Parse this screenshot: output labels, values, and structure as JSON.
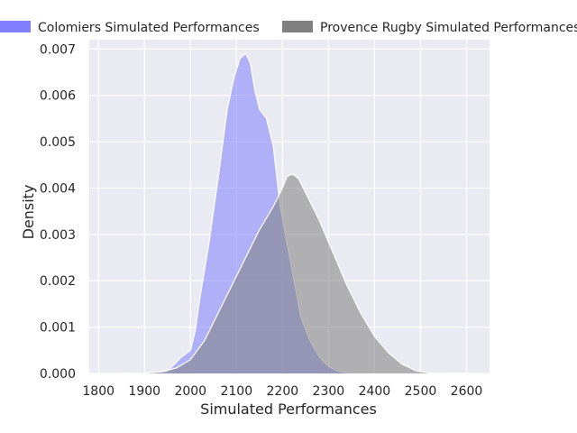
{
  "chart_data": {
    "type": "area",
    "xlabel": "Simulated Performances",
    "ylabel": "Density",
    "xlim": [
      1780,
      2650
    ],
    "ylim": [
      0,
      0.0072
    ],
    "xticks": [
      1800,
      1900,
      2000,
      2100,
      2200,
      2300,
      2400,
      2500,
      2600
    ],
    "yticks": [
      0.0,
      0.001,
      0.002,
      0.003,
      0.004,
      0.005,
      0.006,
      0.007
    ],
    "ytick_labels": [
      "0.000",
      "0.001",
      "0.002",
      "0.003",
      "0.004",
      "0.005",
      "0.006",
      "0.007"
    ],
    "grid": true,
    "legend_position": "top",
    "series": [
      {
        "name": "Colomiers Simulated Performances",
        "color": "#8080ff",
        "points": [
          [
            1900,
            0.0
          ],
          [
            1930,
            2e-05
          ],
          [
            1950,
            5e-05
          ],
          [
            1965,
            0.0002
          ],
          [
            1980,
            0.00035
          ],
          [
            2000,
            0.0005
          ],
          [
            2010,
            0.0009
          ],
          [
            2020,
            0.0016
          ],
          [
            2040,
            0.0028
          ],
          [
            2060,
            0.0042
          ],
          [
            2080,
            0.0057
          ],
          [
            2095,
            0.0064
          ],
          [
            2108,
            0.0068
          ],
          [
            2120,
            0.0069
          ],
          [
            2130,
            0.0067
          ],
          [
            2140,
            0.0061
          ],
          [
            2150,
            0.0057
          ],
          [
            2165,
            0.0055
          ],
          [
            2180,
            0.0049
          ],
          [
            2195,
            0.0036
          ],
          [
            2210,
            0.0028
          ],
          [
            2225,
            0.002
          ],
          [
            2240,
            0.0012
          ],
          [
            2260,
            0.0007
          ],
          [
            2280,
            0.00035
          ],
          [
            2300,
            0.00015
          ],
          [
            2320,
            5e-05
          ],
          [
            2350,
            0.0
          ]
        ]
      },
      {
        "name": "Provence Rugby Simulated Performances",
        "color": "#808080",
        "points": [
          [
            1840,
            0.0
          ],
          [
            1900,
            1e-05
          ],
          [
            1940,
            4e-05
          ],
          [
            1970,
            0.00012
          ],
          [
            2000,
            0.0003
          ],
          [
            2030,
            0.0007
          ],
          [
            2060,
            0.0013
          ],
          [
            2090,
            0.0019
          ],
          [
            2120,
            0.0025
          ],
          [
            2150,
            0.0031
          ],
          [
            2180,
            0.0036
          ],
          [
            2200,
            0.004
          ],
          [
            2210,
            0.00425
          ],
          [
            2222,
            0.0043
          ],
          [
            2235,
            0.0042
          ],
          [
            2250,
            0.0039
          ],
          [
            2280,
            0.0033
          ],
          [
            2310,
            0.0026
          ],
          [
            2340,
            0.0019
          ],
          [
            2370,
            0.0013
          ],
          [
            2400,
            0.0008
          ],
          [
            2430,
            0.00045
          ],
          [
            2460,
            0.0002
          ],
          [
            2490,
            6e-05
          ],
          [
            2520,
            1e-05
          ],
          [
            2610,
            0.0
          ]
        ]
      }
    ]
  }
}
